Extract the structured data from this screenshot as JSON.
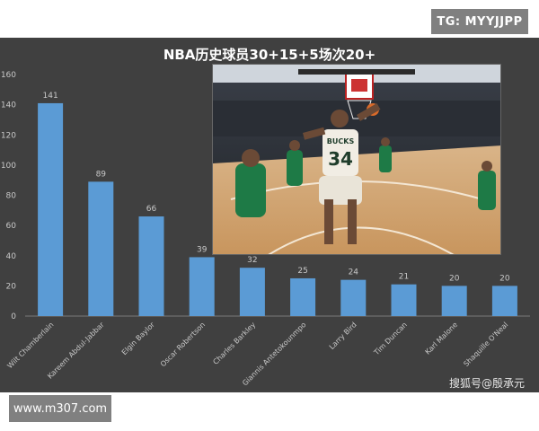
{
  "top_badge": "TG: MYYJJPP",
  "bottom_badge": "www.m307.com",
  "credit": "搜狐号@殷承元",
  "colors": {
    "bar": "#5b9bd5",
    "panel": "#404040",
    "label": "#c8c8c8"
  },
  "photo": {
    "jersey_number": "34",
    "jersey_name": "BUCKS",
    "description_icon": "basketball-game-photo"
  },
  "chart_data": {
    "type": "bar",
    "title": "NBA历史球员30+15+5场次20+",
    "categories": [
      "Wilt Chamberlain",
      "Kareem Abdul-Jabbar",
      "Elgin Baylor",
      "Oscar Robertson",
      "Charles Barkley",
      "Giannis Antetokounmpo",
      "Larry Bird",
      "Tim Duncan",
      "Karl Malone",
      "Shaquille O'Neal"
    ],
    "values": [
      141,
      89,
      66,
      39,
      32,
      25,
      24,
      21,
      20,
      20
    ],
    "yticks": [
      0,
      20,
      40,
      60,
      80,
      100,
      120,
      140,
      160
    ],
    "ylim": [
      0,
      160
    ],
    "grid": false,
    "legend": "none"
  }
}
